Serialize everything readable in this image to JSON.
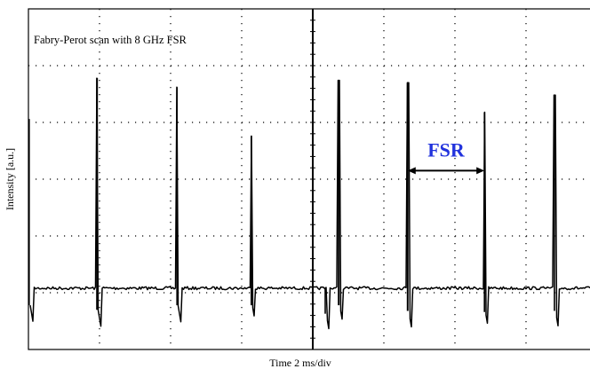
{
  "chart_data": {
    "type": "line",
    "title": "Fabry-Perot scan with 8 GHz FSR",
    "xlabel": "Time 2 ms/div",
    "ylabel": "Intensity [a.u.]",
    "grid": true,
    "divisions": {
      "x": 8,
      "y": 6
    },
    "xlim": [
      0,
      16
    ],
    "ylim": [
      0,
      6
    ],
    "baseline": 1.08,
    "peaks": [
      {
        "x": 0.02,
        "height": 2.98,
        "dip": 0.3
      },
      {
        "x": 1.93,
        "height": 3.7,
        "dip": 0.38
      },
      {
        "x": 4.18,
        "height": 3.54,
        "dip": 0.3
      },
      {
        "x": 6.27,
        "height": 2.68,
        "dip": 0.3
      },
      {
        "x": 8.35,
        "height": 0.0,
        "dip": 0.45
      },
      {
        "x": 8.73,
        "height": 3.66,
        "dip": 0.3
      },
      {
        "x": 10.67,
        "height": 3.62,
        "dip": 0.4
      },
      {
        "x": 12.83,
        "height": 3.1,
        "dip": 0.42
      },
      {
        "x": 14.8,
        "height": 3.4,
        "dip": 0.4
      }
    ],
    "annotation": {
      "text": "FSR",
      "color": "#2233dd",
      "from_x": 10.67,
      "to_x": 12.83,
      "y": 3.15
    }
  },
  "colors": {
    "trace": "#000000",
    "grid": "#000000",
    "background": "#ffffff"
  }
}
